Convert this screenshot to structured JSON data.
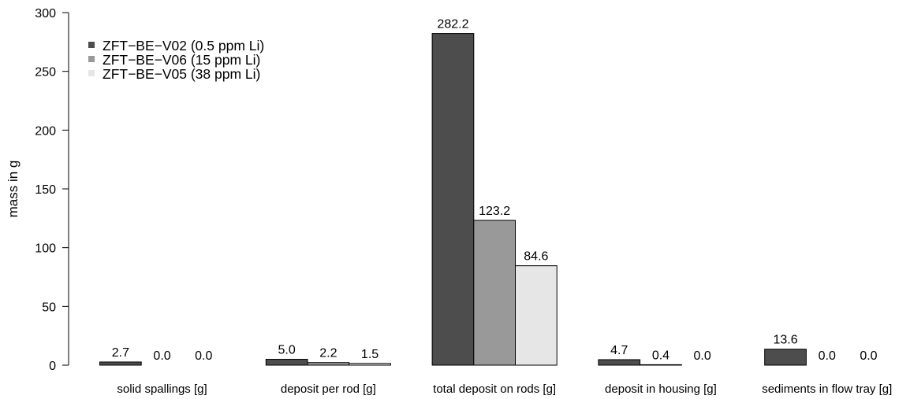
{
  "chart_data": {
    "type": "bar",
    "title": "",
    "xlabel": "",
    "ylabel": "mass in g",
    "ylim": [
      0,
      300
    ],
    "yticks": [
      0,
      50,
      100,
      150,
      200,
      250,
      300
    ],
    "categories": [
      "solid spallings [g]",
      "deposit per rod [g]",
      "total deposit on rods [g]",
      "deposit in housing [g]",
      "sediments in flow tray [g]"
    ],
    "series": [
      {
        "name": "ZFT−BE−V02 (0.5 ppm Li)",
        "color": "#4d4d4d",
        "values": [
          2.7,
          5.0,
          282.2,
          4.7,
          13.6
        ],
        "labels": [
          "2.7",
          "5.0",
          "282.2",
          "4.7",
          "13.6"
        ]
      },
      {
        "name": "ZFT−BE−V06 (15 ppm Li)",
        "color": "#999999",
        "values": [
          0.0,
          2.2,
          123.2,
          0.4,
          0.0
        ],
        "labels": [
          "0.0",
          "2.2",
          "123.2",
          "0.4",
          "0.0"
        ]
      },
      {
        "name": "ZFT−BE−V05 (38 ppm Li)",
        "color": "#e6e6e6",
        "values": [
          0.0,
          1.5,
          84.6,
          0.0,
          0.0
        ],
        "labels": [
          "0.0",
          "1.5",
          "84.6",
          "0.0",
          "0.0"
        ]
      }
    ],
    "legend": "top-left",
    "grid": false
  }
}
